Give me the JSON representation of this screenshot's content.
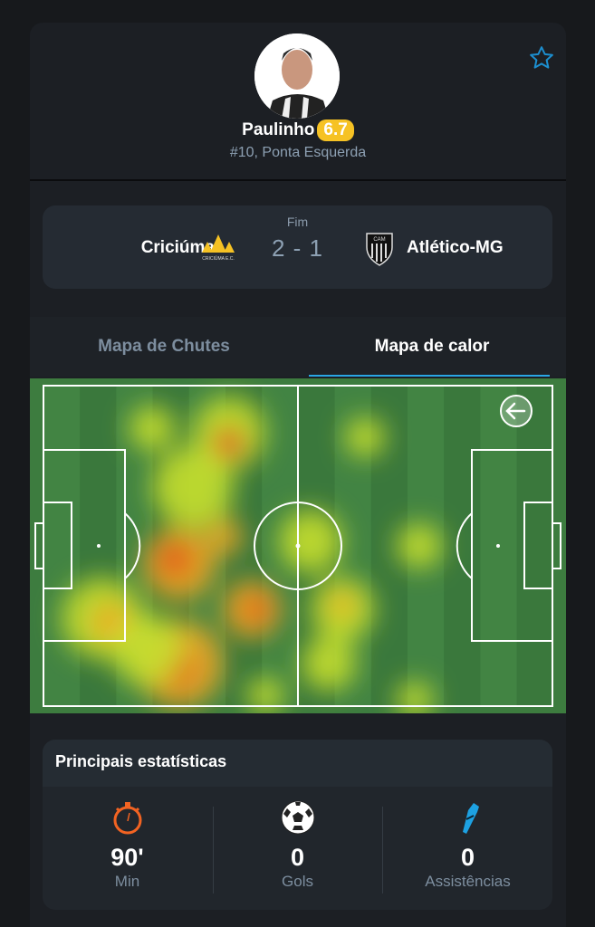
{
  "player": {
    "name": "Paulinho",
    "rating": "6.7",
    "rating_color": "#f6c224",
    "position": "#10, Ponta Esquerda",
    "favorite_icon": "star-outline-icon"
  },
  "match": {
    "status": "Fim",
    "home_team": "Criciúma",
    "home_logo_text": "CRICIÚMA E.C.",
    "away_team": "Atlético-MG",
    "away_logo_text": "CAM",
    "score": "2 - 1"
  },
  "tabs": [
    {
      "label": "Mapa de Chutes",
      "active": false
    },
    {
      "label": "Mapa de calor",
      "active": true
    }
  ],
  "heatmap": {
    "direction_icon": "arrow-left-icon"
  },
  "stats": {
    "title": "Principais estatísticas",
    "items": [
      {
        "icon": "stopwatch-icon",
        "value": "90'",
        "label": "Min",
        "color": "#f26322"
      },
      {
        "icon": "soccer-ball-icon",
        "value": "0",
        "label": "Gols",
        "color": "#ffffff"
      },
      {
        "icon": "football-boot-icon",
        "value": "0",
        "label": "Assistências",
        "color": "#1da1e2"
      }
    ]
  }
}
